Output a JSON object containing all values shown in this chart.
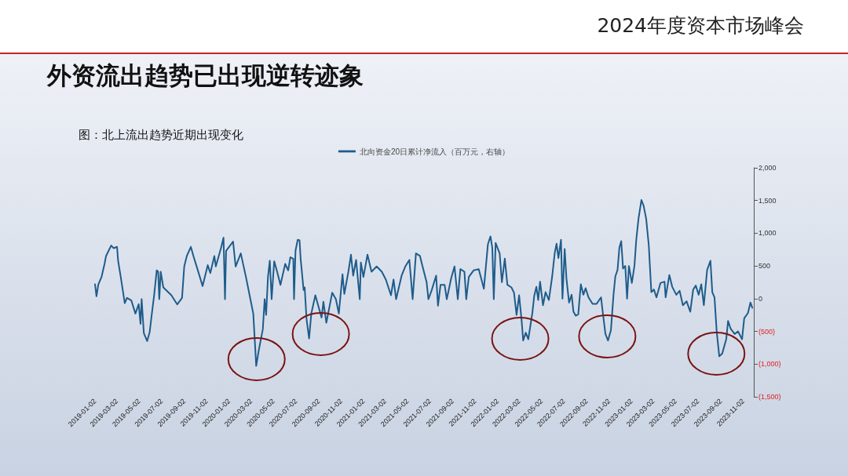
{
  "chart_data": {
    "type": "line",
    "title": "外资流出趋势已出现逆转迹象",
    "subtitle": "图：北上流出趋势近期出现变化",
    "annotations": [
      "2024年度资本市场峰会"
    ],
    "legend": "top",
    "grid": false,
    "marker": "none",
    "line_style": "solid",
    "xlim": [
      "2019-01-02",
      "2023-12-01"
    ],
    "xticks": [
      "2019-01-02",
      "2019-03-02",
      "2019-05-02",
      "2019-07-02",
      "2019-09-02",
      "2019-11-02",
      "2020-01-02",
      "2020-03-02",
      "2020-05-02",
      "2020-07-02",
      "2020-09-02",
      "2020-11-02",
      "2021-01-02",
      "2021-03-02",
      "2021-05-02",
      "2021-07-02",
      "2021-09-02",
      "2021-11-02",
      "2022-01-02",
      "2022-03-02",
      "2022-05-02",
      "2022-07-02",
      "2022-09-02",
      "2022-11-02",
      "2023-01-02",
      "2023-03-02",
      "2023-05-02",
      "2023-07-02",
      "2023-09-02",
      "2023-11-02"
    ],
    "ylim": [
      -1500,
      2000
    ],
    "yticks": [
      {
        "value": -1500,
        "label": "(1,500)"
      },
      {
        "value": -1000,
        "label": "(1,000)"
      },
      {
        "value": -500,
        "label": "(500)"
      },
      0,
      500,
      {
        "value": 1000,
        "label": "1,000"
      },
      {
        "value": 1500,
        "label": "1,500"
      },
      {
        "value": 2000,
        "label": "2,000"
      }
    ],
    "series": [
      {
        "name": "北向资金20日累计净流入（百万元，右轴）",
        "color": "#1f5c8b",
        "x": [
          "2019-01-02",
          "2019-01-06",
          "2019-01-11",
          "2019-01-20",
          "2019-01-28",
          "2019-02-01",
          "2019-02-15",
          "2019-02-22",
          "2019-03-03",
          "2019-03-06",
          "2019-03-13",
          "2019-03-24",
          "2019-03-30",
          "2019-04-11",
          "2019-04-22",
          "2019-05-01",
          "2019-05-06",
          "2019-05-09",
          "2019-05-15",
          "2019-05-24",
          "2019-05-31",
          "2019-06-05",
          "2019-06-12",
          "2019-06-19",
          "2019-06-23",
          "2019-06-26",
          "2019-06-30",
          "2019-07-07",
          "2019-07-18",
          "2019-07-29",
          "2019-08-14",
          "2019-08-27",
          "2019-09-02",
          "2019-09-09",
          "2019-09-20",
          "2019-09-27",
          "2019-10-08",
          "2019-10-22",
          "2019-11-05",
          "2019-11-12",
          "2019-11-23",
          "2019-11-27",
          "2019-12-11",
          "2019-12-18",
          "2019-12-22",
          "2019-12-25",
          "2020-01-13",
          "2020-01-20",
          "2020-02-03",
          "2020-02-17",
          "2020-02-27",
          "2020-03-08",
          "2020-03-16",
          "2020-03-23",
          "2020-04-03",
          "2020-04-08",
          "2020-04-12",
          "2020-04-17",
          "2020-04-22",
          "2020-04-27",
          "2020-05-04",
          "2020-05-12",
          "2020-05-21",
          "2020-06-03",
          "2020-06-11",
          "2020-06-17",
          "2020-06-25",
          "2020-06-27",
          "2020-07-01",
          "2020-07-07",
          "2020-07-12",
          "2020-07-15",
          "2020-07-23",
          "2020-07-26",
          "2020-07-31",
          "2020-08-07",
          "2020-08-13",
          "2020-08-24",
          "2020-09-03",
          "2020-09-10",
          "2020-09-15",
          "2020-09-23",
          "2020-10-09",
          "2020-10-19",
          "2020-10-27",
          "2020-11-06",
          "2020-11-11",
          "2020-11-22",
          "2020-11-29",
          "2020-12-05",
          "2020-12-13",
          "2020-12-23",
          "2020-12-26",
          "2021-01-02",
          "2021-01-13",
          "2021-01-24",
          "2021-02-07",
          "2021-02-21",
          "2021-03-04",
          "2021-03-18",
          "2021-03-25",
          "2021-04-01",
          "2021-04-16",
          "2021-04-26",
          "2021-05-07",
          "2021-05-11",
          "2021-05-16",
          "2021-05-25",
          "2021-06-05",
          "2021-06-12",
          "2021-06-23",
          "2021-06-28",
          "2021-07-07",
          "2021-07-19",
          "2021-07-24",
          "2021-07-31",
          "2021-08-11",
          "2021-08-17",
          "2021-08-29",
          "2021-09-07",
          "2021-09-16",
          "2021-09-23",
          "2021-10-04",
          "2021-10-09",
          "2021-10-16",
          "2021-10-29",
          "2021-11-12",
          "2021-11-26",
          "2021-12-07",
          "2021-12-14",
          "2021-12-19",
          "2021-12-23",
          "2021-12-28",
          "2022-01-08",
          "2022-01-14",
          "2022-01-22",
          "2022-01-29",
          "2022-02-09",
          "2022-02-16",
          "2022-02-23",
          "2022-03-02",
          "2022-03-09",
          "2022-03-13",
          "2022-03-20",
          "2022-03-27",
          "2022-04-02",
          "2022-04-07",
          "2022-04-12",
          "2022-04-18",
          "2022-04-23",
          "2022-04-28",
          "2022-05-06",
          "2022-05-13",
          "2022-05-22",
          "2022-05-31",
          "2022-06-07",
          "2022-06-12",
          "2022-06-17",
          "2022-06-24",
          "2022-06-28",
          "2022-07-04",
          "2022-07-09",
          "2022-07-16",
          "2022-07-23",
          "2022-07-28",
          "2022-08-03",
          "2022-08-10",
          "2022-08-17",
          "2022-08-24",
          "2022-08-30",
          "2022-09-07",
          "2022-09-18",
          "2022-09-29",
          "2022-10-11",
          "2022-10-16",
          "2022-10-23",
          "2022-10-30",
          "2022-11-07",
          "2022-11-14",
          "2022-11-19",
          "2022-11-25",
          "2022-11-30",
          "2022-12-05",
          "2022-12-10",
          "2022-12-16",
          "2022-12-21",
          "2022-12-26",
          "2023-01-03",
          "2023-01-10",
          "2023-01-15",
          "2023-01-21",
          "2023-01-29",
          "2023-02-04",
          "2023-02-11",
          "2023-02-18",
          "2023-02-25",
          "2023-03-04",
          "2023-03-11",
          "2023-03-22",
          "2023-04-02",
          "2023-04-05",
          "2023-04-15",
          "2023-04-23",
          "2023-05-04",
          "2023-05-13",
          "2023-05-22",
          "2023-06-01",
          "2023-06-11",
          "2023-06-19",
          "2023-06-26",
          "2023-07-04",
          "2023-07-11",
          "2023-07-18",
          "2023-07-27",
          "2023-08-05",
          "2023-08-10",
          "2023-08-16",
          "2023-08-22",
          "2023-08-29",
          "2023-09-06",
          "2023-09-17",
          "2023-09-22",
          "2023-09-29",
          "2023-10-10",
          "2023-10-19",
          "2023-10-30",
          "2023-11-05",
          "2023-11-15",
          "2023-11-22",
          "2023-11-27"
        ],
        "values": [
          220,
          36,
          216,
          336,
          532,
          652,
          812,
          772,
          792,
          576,
          336,
          -68,
          12,
          -28,
          -228,
          -84,
          -384,
          -8,
          -528,
          -648,
          -508,
          -268,
          52,
          432,
          412,
          -8,
          412,
          172,
          112,
          52,
          -88,
          12,
          492,
          652,
          792,
          652,
          452,
          192,
          512,
          392,
          652,
          492,
          772,
          932,
          -8,
          732,
          872,
          492,
          692,
          332,
          52,
          -228,
          -1028,
          -788,
          -468,
          -8,
          -248,
          332,
          580,
          -8,
          572,
          412,
          212,
          532,
          432,
          632,
          612,
          -8,
          732,
          900,
          892,
          612,
          132,
          172,
          -308,
          -608,
          -228,
          52,
          -148,
          -288,
          -48,
          -368,
          92,
          -8,
          -228,
          372,
          72,
          412,
          672,
          352,
          592,
          -8,
          552,
          332,
          672,
          412,
          492,
          412,
          292,
          52,
          292,
          -8,
          352,
          492,
          592,
          332,
          -8,
          692,
          652,
          492,
          252,
          -8,
          132,
          352,
          -108,
          212,
          212,
          -8,
          312,
          492,
          -8,
          452,
          412,
          -8,
          332,
          432,
          452,
          152,
          832,
          952,
          772,
          -8,
          852,
          692,
          252,
          612,
          212,
          172,
          92,
          -248,
          52,
          -348,
          -640,
          -520,
          -620,
          -400,
          -220,
          40,
          180,
          -20,
          260,
          -100,
          100,
          -20,
          340,
          700,
          840,
          620,
          900,
          0,
          760,
          300,
          -60,
          60,
          -200,
          -260,
          -240,
          220,
          60,
          160,
          20,
          -80,
          -80,
          20,
          -220,
          -540,
          -640,
          -480,
          60,
          340,
          440,
          780,
          880,
          460,
          500,
          0,
          500,
          240,
          500,
          900,
          1220,
          1508,
          1420,
          1220,
          820,
          100,
          140,
          20,
          240,
          260,
          20,
          360,
          180,
          60,
          120,
          -100,
          -40,
          -200,
          140,
          200,
          60,
          220,
          -100,
          440,
          580,
          100,
          20,
          -500,
          -880,
          -840,
          -620,
          -340,
          -460,
          -540,
          -500,
          -620,
          -300,
          -220,
          -60,
          -140
        ]
      }
    ]
  }
}
